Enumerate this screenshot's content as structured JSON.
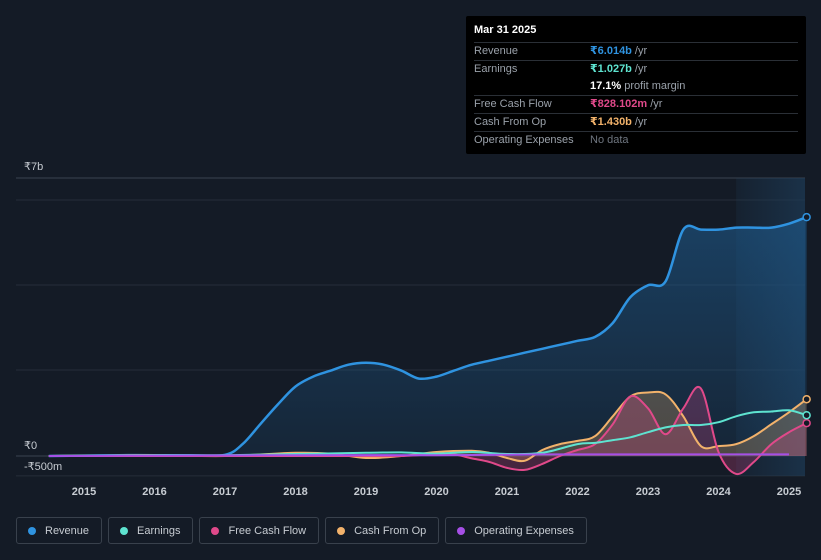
{
  "tooltip": {
    "date": "Mar 31 2025",
    "rows": [
      {
        "label": "Revenue",
        "value": "₹6.014b",
        "unit": "/yr",
        "color": "#2f93e0"
      },
      {
        "label": "Earnings",
        "value": "₹1.027b",
        "unit": "/yr",
        "color": "#5ee3d0"
      },
      {
        "label": "",
        "value": "17.1%",
        "unit": "profit margin",
        "color": "#ffffff"
      },
      {
        "label": "Free Cash Flow",
        "value": "₹828.102m",
        "unit": "/yr",
        "color": "#e0498a"
      },
      {
        "label": "Cash From Op",
        "value": "₹1.430b",
        "unit": "/yr",
        "color": "#f2b26b"
      },
      {
        "label": "Operating Expenses",
        "value": "No data",
        "unit": "",
        "color": "#6f7680"
      }
    ]
  },
  "chart_data": {
    "type": "line",
    "title": "",
    "xlabel": "",
    "ylabel": "",
    "ylim": [
      -500,
      7000
    ],
    "y_unit": "₹ millions",
    "y_tick_labels": [
      {
        "value": 7000,
        "label": "₹7b"
      },
      {
        "value": 0,
        "label": "₹0"
      },
      {
        "value": -500,
        "label": "-₹500m"
      }
    ],
    "x_ticks": [
      2015,
      2016,
      2017,
      2018,
      2019,
      2020,
      2021,
      2022,
      2023,
      2024,
      2025
    ],
    "xlim": [
      2014.5,
      2025.25
    ],
    "forecast_start": 2024.25,
    "series": [
      {
        "name": "Revenue",
        "color": "#2f93e0",
        "fill": true,
        "x": [
          2014.5,
          2015,
          2015.5,
          2016,
          2016.5,
          2017,
          2017.25,
          2017.5,
          2017.75,
          2018,
          2018.25,
          2018.5,
          2018.75,
          2019,
          2019.25,
          2019.5,
          2019.75,
          2020,
          2020.25,
          2020.5,
          2020.75,
          2021,
          2021.25,
          2021.5,
          2021.75,
          2022,
          2022.25,
          2022.5,
          2022.75,
          2023,
          2023.25,
          2023.5,
          2023.75,
          2024,
          2024.25,
          2024.5,
          2024.75,
          2025,
          2025.25
        ],
        "values": [
          0,
          10,
          20,
          20,
          20,
          30,
          300,
          800,
          1300,
          1750,
          2000,
          2150,
          2300,
          2350,
          2300,
          2150,
          1950,
          2000,
          2150,
          2300,
          2400,
          2500,
          2600,
          2700,
          2800,
          2900,
          3000,
          3350,
          4000,
          4300,
          4400,
          5700,
          5700,
          5700,
          5750,
          5750,
          5750,
          5850,
          6014
        ]
      },
      {
        "name": "Earnings",
        "color": "#5ee3d0",
        "fill": false,
        "x": [
          2014.5,
          2015,
          2016,
          2017,
          2018,
          2019,
          2019.5,
          2020,
          2020.5,
          2021,
          2021.5,
          2022,
          2022.25,
          2022.5,
          2022.75,
          2023,
          2023.25,
          2023.5,
          2023.75,
          2024,
          2024.25,
          2024.5,
          2024.75,
          2025,
          2025.25
        ],
        "values": [
          0,
          10,
          20,
          20,
          50,
          80,
          90,
          60,
          100,
          50,
          80,
          300,
          330,
          400,
          470,
          600,
          720,
          780,
          780,
          850,
          1000,
          1100,
          1120,
          1150,
          1027
        ]
      },
      {
        "name": "Free Cash Flow",
        "color": "#e0498a",
        "fill": true,
        "x": [
          2014.5,
          2015,
          2016,
          2017,
          2018,
          2019,
          2019.5,
          2020,
          2020.25,
          2020.5,
          2020.75,
          2021,
          2021.25,
          2021.5,
          2021.75,
          2022,
          2022.25,
          2022.5,
          2022.75,
          2023,
          2023.25,
          2023.5,
          2023.75,
          2024,
          2024.25,
          2024.5,
          2024.75,
          2025,
          2025.25
        ],
        "values": [
          0,
          0,
          0,
          0,
          0,
          0,
          0,
          50,
          40,
          -60,
          -150,
          -300,
          -350,
          -200,
          0,
          150,
          300,
          800,
          1500,
          1200,
          550,
          1200,
          1700,
          100,
          -450,
          -150,
          300,
          600,
          828
        ]
      },
      {
        "name": "Cash From Op",
        "color": "#f2b26b",
        "fill": true,
        "x": [
          2014.5,
          2015,
          2016,
          2017,
          2018,
          2018.5,
          2019,
          2019.5,
          2020,
          2020.5,
          2020.75,
          2021,
          2021.25,
          2021.5,
          2021.75,
          2022,
          2022.25,
          2022.5,
          2022.75,
          2023,
          2023.25,
          2023.5,
          2023.75,
          2024,
          2024.25,
          2024.5,
          2024.75,
          2025,
          2025.25
        ],
        "values": [
          0,
          10,
          20,
          0,
          80,
          60,
          -50,
          0,
          100,
          130,
          80,
          -50,
          -120,
          150,
          300,
          380,
          500,
          1000,
          1500,
          1600,
          1550,
          1000,
          250,
          250,
          300,
          500,
          800,
          1100,
          1430
        ]
      },
      {
        "name": "Operating Expenses",
        "color": "#a64fe6",
        "fill": false,
        "x": [
          2014.5,
          2016,
          2018,
          2020,
          2021,
          2021.5,
          2022,
          2023,
          2024,
          2025
        ],
        "values": [
          0,
          10,
          20,
          20,
          30,
          40,
          40,
          40,
          40,
          40
        ]
      }
    ],
    "legend": [
      "Revenue",
      "Earnings",
      "Free Cash Flow",
      "Cash From Op",
      "Operating Expenses"
    ]
  }
}
